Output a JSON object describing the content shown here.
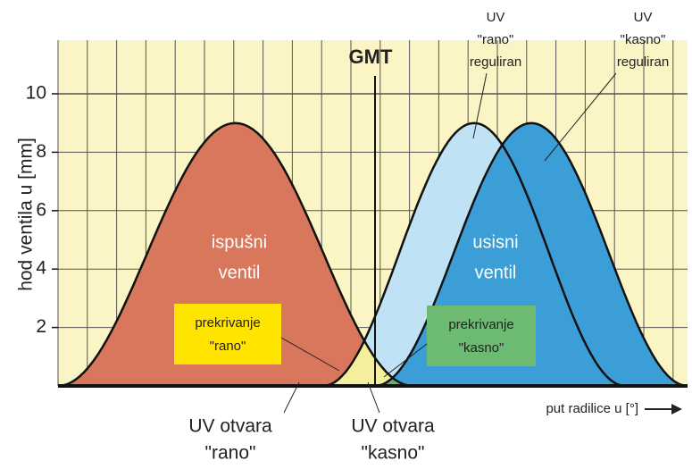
{
  "axis": {
    "y_label": "hod ventila u [mm]",
    "x_label": "put radilice u [°]",
    "yticks": [
      2,
      4,
      6,
      8,
      10
    ]
  },
  "gmt": "GMT",
  "exhaust": [
    "ispušni",
    "ventil"
  ],
  "intake": [
    "usisni",
    "ventil"
  ],
  "early": [
    "UV",
    "\"rano\"",
    "reguliran"
  ],
  "late": [
    "UV",
    "\"kasno\"",
    "reguliran"
  ],
  "overlap_early": [
    "prekrivanje",
    "\"rano\""
  ],
  "overlap_late": [
    "prekrivanje",
    "\"kasno\""
  ],
  "open_early": [
    "UV otvara",
    "\"rano\""
  ],
  "open_late": [
    "UV otvara",
    "\"kasno\""
  ]
}
